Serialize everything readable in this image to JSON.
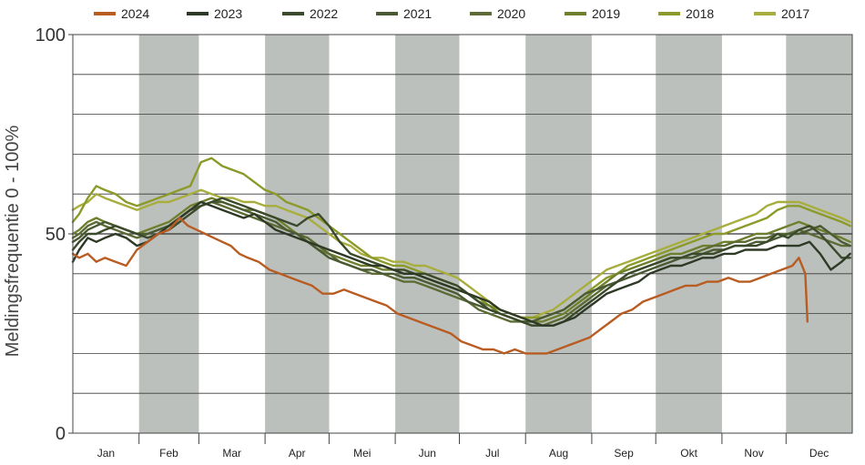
{
  "chart_data": {
    "type": "line",
    "title": "",
    "xlabel": "",
    "ylabel": "Meldingsfrequentie 0 - 100%",
    "ylim": [
      0,
      100
    ],
    "yticks": [
      0,
      50,
      100
    ],
    "grid": true,
    "legend_position": "top",
    "months": [
      "Jan",
      "Feb",
      "Mar",
      "Apr",
      "Mei",
      "Jun",
      "Jul",
      "Aug",
      "Sep",
      "Okt",
      "Nov",
      "Dec"
    ],
    "series": [
      {
        "name": "2024",
        "color": "#b85c22",
        "x": [
          1,
          4,
          8,
          12,
          16,
          21,
          26,
          31,
          36,
          41,
          46,
          51,
          55,
          59,
          63,
          67,
          71,
          75,
          79,
          83,
          88,
          93,
          98,
          103,
          108,
          113,
          118,
          123,
          128,
          133,
          138,
          143,
          148,
          153,
          158,
          163,
          168,
          173,
          178,
          183,
          188,
          193,
          198,
          203,
          208,
          213,
          218,
          223,
          228,
          233,
          238,
          243,
          248,
          253,
          258,
          263,
          268,
          273,
          278,
          283,
          288,
          293,
          298,
          303,
          308,
          313,
          318,
          323,
          328,
          333,
          338,
          341,
          344,
          345
        ],
        "y": [
          45,
          44,
          45,
          43,
          44,
          43,
          42,
          46,
          48,
          50,
          51,
          54,
          52,
          51,
          50,
          49,
          48,
          47,
          45,
          44,
          43,
          41,
          40,
          39,
          38,
          37,
          35,
          35,
          36,
          35,
          34,
          33,
          32,
          30,
          29,
          28,
          27,
          26,
          25,
          23,
          22,
          21,
          21,
          20,
          21,
          20,
          20,
          20,
          21,
          22,
          23,
          24,
          26,
          28,
          30,
          31,
          33,
          34,
          35,
          36,
          37,
          37,
          38,
          38,
          39,
          38,
          38,
          39,
          40,
          41,
          42,
          44,
          40,
          28
        ]
      },
      {
        "name": "2023",
        "color": "#2f3a26",
        "x": [
          1,
          4,
          8,
          12,
          16,
          21,
          26,
          31,
          36,
          41,
          46,
          51,
          56,
          61,
          66,
          71,
          76,
          81,
          86,
          91,
          96,
          101,
          106,
          111,
          116,
          121,
          126,
          131,
          136,
          141,
          146,
          151,
          156,
          161,
          166,
          171,
          176,
          181,
          186,
          191,
          196,
          201,
          206,
          211,
          216,
          221,
          226,
          231,
          236,
          241,
          246,
          251,
          256,
          261,
          266,
          271,
          276,
          281,
          286,
          291,
          296,
          301,
          306,
          311,
          316,
          321,
          326,
          331,
          336,
          341,
          346,
          351,
          356,
          361,
          365
        ],
        "y": [
          43,
          46,
          49,
          48,
          49,
          50,
          49,
          47,
          48,
          50,
          52,
          54,
          56,
          58,
          57,
          56,
          55,
          54,
          55,
          53,
          51,
          50,
          49,
          48,
          47,
          46,
          45,
          44,
          43,
          42,
          42,
          41,
          40,
          40,
          39,
          38,
          37,
          36,
          35,
          34,
          33,
          31,
          30,
          29,
          28,
          27,
          27,
          28,
          29,
          31,
          33,
          35,
          36,
          37,
          38,
          40,
          41,
          42,
          42,
          43,
          44,
          44,
          45,
          45,
          46,
          46,
          46,
          47,
          47,
          47,
          48,
          45,
          41,
          43,
          45
        ]
      },
      {
        "name": "2022",
        "color": "#3c4a2c",
        "x": [
          1,
          4,
          8,
          12,
          16,
          21,
          26,
          31,
          36,
          41,
          46,
          51,
          56,
          61,
          66,
          71,
          76,
          81,
          86,
          91,
          96,
          101,
          106,
          111,
          116,
          121,
          126,
          131,
          136,
          141,
          146,
          151,
          156,
          161,
          166,
          171,
          176,
          181,
          186,
          191,
          196,
          201,
          206,
          211,
          216,
          221,
          226,
          231,
          236,
          241,
          246,
          251,
          256,
          261,
          266,
          271,
          276,
          281,
          286,
          291,
          296,
          301,
          306,
          311,
          316,
          321,
          326,
          331,
          336,
          341,
          346,
          351,
          356,
          361,
          365
        ],
        "y": [
          46,
          48,
          50,
          50,
          51,
          52,
          51,
          50,
          49,
          50,
          51,
          53,
          55,
          57,
          58,
          59,
          58,
          57,
          56,
          55,
          54,
          53,
          52,
          54,
          55,
          52,
          48,
          45,
          44,
          43,
          42,
          41,
          41,
          40,
          40,
          39,
          38,
          37,
          35,
          33,
          31,
          30,
          29,
          28,
          27,
          27,
          27,
          28,
          30,
          32,
          34,
          36,
          38,
          40,
          41,
          42,
          43,
          44,
          44,
          45,
          45,
          45,
          46,
          47,
          47,
          47,
          48,
          50,
          49,
          51,
          52,
          50,
          47,
          44,
          44
        ]
      },
      {
        "name": "2021",
        "color": "#4a5a33",
        "x": [
          1,
          4,
          8,
          12,
          16,
          21,
          26,
          31,
          36,
          41,
          46,
          51,
          56,
          61,
          66,
          71,
          76,
          81,
          86,
          91,
          96,
          101,
          106,
          111,
          116,
          121,
          126,
          131,
          136,
          141,
          146,
          151,
          156,
          161,
          166,
          171,
          176,
          181,
          186,
          191,
          196,
          201,
          206,
          211,
          216,
          221,
          226,
          231,
          236,
          241,
          246,
          251,
          256,
          261,
          266,
          271,
          276,
          281,
          286,
          291,
          296,
          301,
          306,
          311,
          316,
          321,
          326,
          331,
          336,
          341,
          346,
          351,
          356,
          361,
          365
        ],
        "y": [
          48,
          49,
          51,
          52,
          53,
          52,
          51,
          50,
          50,
          51,
          52,
          54,
          56,
          57,
          58,
          58,
          57,
          56,
          55,
          54,
          53,
          51,
          50,
          48,
          46,
          44,
          43,
          42,
          41,
          41,
          40,
          40,
          39,
          39,
          38,
          37,
          36,
          35,
          33,
          32,
          31,
          30,
          29,
          28,
          28,
          29,
          30,
          31,
          33,
          35,
          36,
          37,
          38,
          39,
          40,
          41,
          42,
          43,
          44,
          44,
          45,
          46,
          46,
          47,
          47,
          48,
          48,
          49,
          50,
          50,
          51,
          52,
          50,
          48,
          47
        ]
      },
      {
        "name": "2020",
        "color": "#5d6b35",
        "x": [
          1,
          4,
          8,
          12,
          16,
          21,
          26,
          31,
          36,
          41,
          46,
          51,
          56,
          61,
          66,
          71,
          76,
          81,
          86,
          91,
          96,
          101,
          106,
          111,
          116,
          121,
          126,
          131,
          136,
          141,
          146,
          151,
          156,
          161,
          166,
          171,
          176,
          181,
          186,
          191,
          196,
          201,
          206,
          211,
          216,
          221,
          226,
          231,
          236,
          241,
          246,
          251,
          256,
          261,
          266,
          271,
          276,
          281,
          286,
          291,
          296,
          301,
          306,
          311,
          316,
          321,
          326,
          331,
          336,
          341,
          346,
          351,
          356,
          361,
          365
        ],
        "y": [
          49,
          50,
          52,
          53,
          52,
          51,
          50,
          49,
          50,
          51,
          52,
          54,
          56,
          57,
          58,
          57,
          56,
          55,
          54,
          53,
          52,
          51,
          50,
          49,
          47,
          45,
          43,
          42,
          41,
          40,
          40,
          39,
          38,
          38,
          37,
          36,
          35,
          34,
          33,
          31,
          30,
          29,
          28,
          28,
          27,
          27,
          28,
          29,
          31,
          33,
          35,
          37,
          38,
          40,
          41,
          42,
          43,
          44,
          44,
          45,
          46,
          47,
          47,
          48,
          48,
          49,
          49,
          50,
          50,
          51,
          50,
          49,
          48,
          47,
          47
        ]
      },
      {
        "name": "2019",
        "color": "#6e7f2e",
        "x": [
          1,
          4,
          8,
          12,
          16,
          21,
          26,
          31,
          36,
          41,
          46,
          51,
          56,
          61,
          66,
          71,
          76,
          81,
          86,
          91,
          96,
          101,
          106,
          111,
          116,
          121,
          126,
          131,
          136,
          141,
          146,
          151,
          156,
          161,
          166,
          171,
          176,
          181,
          186,
          191,
          196,
          201,
          206,
          211,
          216,
          221,
          226,
          231,
          236,
          241,
          246,
          251,
          256,
          261,
          266,
          271,
          276,
          281,
          286,
          291,
          296,
          301,
          306,
          311,
          316,
          321,
          326,
          331,
          336,
          341,
          346,
          351,
          356,
          361,
          365
        ],
        "y": [
          50,
          51,
          53,
          54,
          53,
          52,
          51,
          50,
          51,
          52,
          53,
          55,
          57,
          58,
          59,
          58,
          57,
          56,
          56,
          55,
          54,
          52,
          50,
          48,
          46,
          45,
          44,
          43,
          42,
          42,
          41,
          41,
          40,
          40,
          39,
          38,
          37,
          36,
          35,
          33,
          32,
          30,
          29,
          28,
          28,
          28,
          29,
          30,
          32,
          34,
          36,
          38,
          40,
          41,
          42,
          43,
          44,
          45,
          45,
          46,
          47,
          47,
          48,
          48,
          49,
          50,
          50,
          51,
          52,
          53,
          52,
          51,
          50,
          49,
          48
        ]
      },
      {
        "name": "2018",
        "color": "#8c9a2a",
        "x": [
          1,
          4,
          8,
          12,
          16,
          21,
          26,
          31,
          36,
          41,
          46,
          51,
          56,
          61,
          66,
          71,
          76,
          81,
          86,
          91,
          96,
          101,
          106,
          111,
          116,
          121,
          126,
          131,
          136,
          141,
          146,
          151,
          156,
          161,
          166,
          171,
          176,
          181,
          186,
          191,
          196,
          201,
          206,
          211,
          216,
          221,
          226,
          231,
          236,
          241,
          246,
          251,
          256,
          261,
          266,
          271,
          276,
          281,
          286,
          291,
          296,
          301,
          306,
          311,
          316,
          321,
          326,
          331,
          336,
          341,
          346,
          351,
          356,
          361,
          365
        ],
        "y": [
          53,
          55,
          59,
          62,
          61,
          60,
          58,
          57,
          58,
          59,
          60,
          61,
          62,
          68,
          69,
          67,
          66,
          65,
          63,
          61,
          60,
          58,
          57,
          56,
          54,
          52,
          50,
          48,
          46,
          44,
          43,
          42,
          42,
          41,
          40,
          39,
          38,
          37,
          35,
          34,
          32,
          31,
          30,
          29,
          29,
          29,
          30,
          31,
          33,
          35,
          37,
          39,
          40,
          42,
          43,
          44,
          45,
          46,
          47,
          48,
          49,
          50,
          50,
          51,
          52,
          53,
          54,
          56,
          57,
          57,
          56,
          55,
          54,
          53,
          52
        ]
      },
      {
        "name": "2017",
        "color": "#a8ae3e",
        "x": [
          1,
          4,
          8,
          12,
          16,
          21,
          26,
          31,
          36,
          41,
          46,
          51,
          56,
          61,
          66,
          71,
          76,
          81,
          86,
          91,
          96,
          101,
          106,
          111,
          116,
          121,
          126,
          131,
          136,
          141,
          146,
          151,
          156,
          161,
          166,
          171,
          176,
          181,
          186,
          191,
          196,
          201,
          206,
          211,
          216,
          221,
          226,
          231,
          236,
          241,
          246,
          251,
          256,
          261,
          266,
          271,
          276,
          281,
          286,
          291,
          296,
          301,
          306,
          311,
          316,
          321,
          326,
          331,
          336,
          341,
          346,
          351,
          356,
          361,
          365
        ],
        "y": [
          56,
          57,
          58,
          60,
          59,
          58,
          57,
          56,
          57,
          58,
          58,
          59,
          60,
          61,
          60,
          59,
          59,
          58,
          58,
          57,
          57,
          56,
          55,
          54,
          52,
          50,
          48,
          47,
          45,
          44,
          44,
          43,
          43,
          42,
          42,
          41,
          40,
          39,
          37,
          35,
          33,
          31,
          30,
          29,
          29,
          30,
          31,
          33,
          35,
          37,
          39,
          41,
          42,
          43,
          44,
          45,
          46,
          47,
          48,
          49,
          50,
          51,
          52,
          53,
          54,
          55,
          57,
          58,
          58,
          58,
          57,
          56,
          55,
          54,
          53
        ]
      }
    ]
  }
}
